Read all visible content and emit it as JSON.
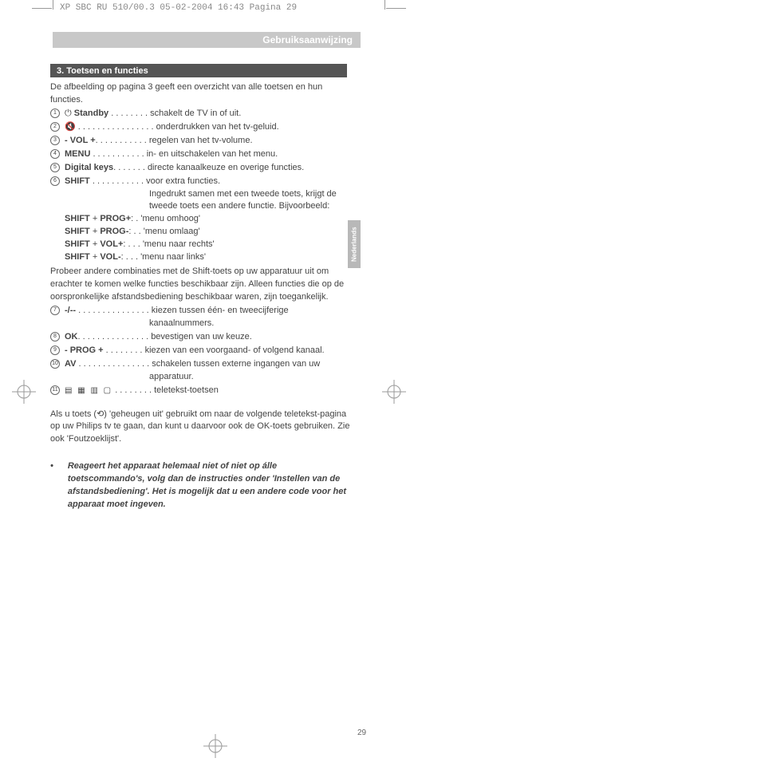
{
  "header": {
    "file_info": "XP SBC RU 510/00.3  05-02-2004 16:43  Pagina 29",
    "band_title": "Gebruiksaanwijzing"
  },
  "section": {
    "title": "3. Toetsen en functies"
  },
  "intro": "De afbeelding op pagina 3 geeft een overzicht van alle toetsen en hun functies.",
  "items": [
    {
      "num": "1",
      "icon": "⏻",
      "key": "Standby",
      "dots": " . . . . . . . . ",
      "desc": "schakelt de TV in of uit."
    },
    {
      "num": "2",
      "icon": "🔇",
      "key": "",
      "dots": " . . . . . . . . . . . . . . . . ",
      "desc": "onderdrukken van het tv-geluid."
    },
    {
      "num": "3",
      "icon": "",
      "key": "- VOL +",
      "dots": ". . . . . . . . . . . ",
      "desc": "regelen van het tv-volume."
    },
    {
      "num": "4",
      "icon": "",
      "key": "MENU",
      "dots": " . . . . . . . . . . . ",
      "desc": "in- en uitschakelen van het menu."
    },
    {
      "num": "5",
      "icon": "",
      "key": "Digital keys",
      "dots": ". . . . . . . ",
      "desc": "directe kanaalkeuze en overige functies."
    },
    {
      "num": "6",
      "icon": "",
      "key": "SHIFT",
      "dots": " . . . . . . . . . . . ",
      "desc": "voor extra functies."
    }
  ],
  "shift_extra": [
    "Ingedrukt samen met een tweede toets, krijgt de",
    "tweede toets een andere functie. Bijvoorbeeld:"
  ],
  "shift_combos": [
    {
      "label": "SHIFT + PROG+",
      "dots": ": . ",
      "desc": "'menu omhoog'"
    },
    {
      "label": "SHIFT + PROG-",
      "dots": ": . . ",
      "desc": "'menu omlaag'"
    },
    {
      "label": "SHIFT + VOL+",
      "dots": ": . . . ",
      "desc": "'menu naar rechts'"
    },
    {
      "label": "SHIFT + VOL-",
      "dots": ": . . . ",
      "desc": "'menu naar links'"
    }
  ],
  "shift_try": "Probeer andere combinaties met de Shift-toets op uw apparatuur uit om erachter te komen welke functies beschikbaar zijn. Alleen functies die op de oorspronkelijke afstandsbediening beschikbaar waren, zijn toegankelijk.",
  "items2": [
    {
      "num": "7",
      "icon": "",
      "key": "-/--",
      "dots": "  . . . . . . . . . . . . . . . ",
      "desc": "kiezen tussen één- en tweecijferige",
      "desc2": "kanaalnummers."
    },
    {
      "num": "8",
      "icon": "",
      "key": "OK",
      "dots": ". . . . . . . . . . . . . . . ",
      "desc": "bevestigen van uw keuze."
    },
    {
      "num": "9",
      "icon": "",
      "key": "- PROG +",
      "dots": " . . . . . . . . ",
      "desc": "kiezen van een voorgaand- of volgend kanaal."
    },
    {
      "num": "10",
      "icon": "",
      "key": "AV",
      "dots": " . . . . . . . . . . . . . . . ",
      "desc": "schakelen tussen externe ingangen van uw",
      "desc2": "apparatuur."
    },
    {
      "num": "11",
      "icon": "tt",
      "key": "",
      "dots": " . . . . . . . . ",
      "desc": "teletekst-toetsen"
    }
  ],
  "ok_note": "Als u toets (⟲) 'geheugen uit' gebruikt om naar de volgende teletekst-pagina op uw Philips tv te gaan, dan kunt u daarvoor ook de OK-toets gebruiken. Zie ook 'Foutzoeklijst'.",
  "warning": "Reageert het apparaat helemaal niet of niet op álle toetscommando's, volg dan de instructies onder 'Instellen van de afstandsbediening'. Het is mogelijk dat u een andere code voor het apparaat moet ingeven.",
  "vtab": "Nederlands",
  "page_num": "29",
  "colors": {
    "band": "#c8c8c8",
    "band_left": "#b8b8b8",
    "section_bg": "#555555",
    "text": "#444444"
  }
}
